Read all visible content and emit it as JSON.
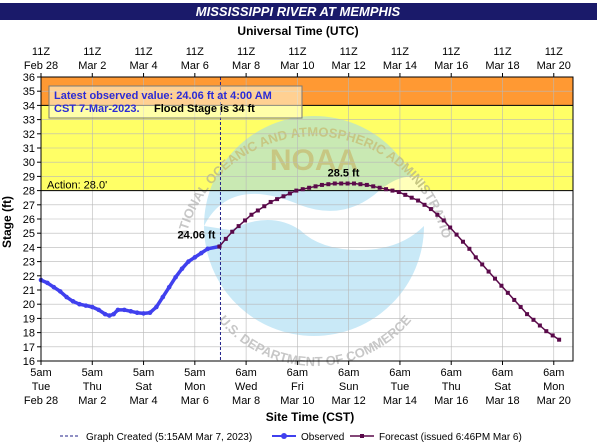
{
  "header": {
    "title": "MISSISSIPPI RIVER AT MEMPHIS",
    "utc_label": "Universal Time (UTC)"
  },
  "info_box": {
    "line1": "Latest observed value: 24.06 ft at 4:00 AM",
    "line2a": "CST 7-Mar-2023.",
    "line2b": "Flood Stage is 34 ft"
  },
  "watermark": {
    "logo_text": "NOAA",
    "ring_top": "NATIONAL OCEANIC AND ATMOSPHERIC ADMINISTRATION",
    "ring_bottom": "U.S. DEPARTMENT OF COMMERCE"
  },
  "legend": {
    "graph_created": "Graph Created (5:15AM Mar 7, 2023)",
    "observed": "Observed",
    "forecast": "Forecast (issued 6:46PM Mar 6)"
  },
  "colors": {
    "observed": "#4040ee",
    "forecast": "#5a0a4a",
    "action_zone": "#ffff66",
    "flood_zone": "#ff9933",
    "watermark_blue": "#9dd8f2"
  },
  "chart_data": {
    "type": "line",
    "title": "MISSISSIPPI RIVER AT MEMPHIS",
    "xlabel": "Site Time (CST)",
    "x2label": "Universal Time (UTC)",
    "ylabel": "Stage (ft)",
    "ylim": [
      16,
      36
    ],
    "yticks": [
      16,
      17,
      18,
      19,
      20,
      21,
      22,
      23,
      24,
      25,
      26,
      27,
      28,
      29,
      30,
      31,
      32,
      33,
      34,
      35,
      36
    ],
    "x_unit": "hours from Tue Feb 28 5am CST",
    "xlim": [
      0,
      498
    ],
    "grid": true,
    "bottom_ticks": [
      {
        "x": 0,
        "time": "5am",
        "day": "Tue",
        "date": "Feb 28"
      },
      {
        "x": 48,
        "time": "5am",
        "day": "Thu",
        "date": "Mar 2"
      },
      {
        "x": 96,
        "time": "5am",
        "day": "Sat",
        "date": "Mar 4"
      },
      {
        "x": 144,
        "time": "5am",
        "day": "Mon",
        "date": "Mar 6"
      },
      {
        "x": 192,
        "time": "6am",
        "day": "Wed",
        "date": "Mar 8"
      },
      {
        "x": 240,
        "time": "6am",
        "day": "Fri",
        "date": "Mar 10"
      },
      {
        "x": 288,
        "time": "6am",
        "day": "Sun",
        "date": "Mar 12"
      },
      {
        "x": 336,
        "time": "6am",
        "day": "Tue",
        "date": "Mar 14"
      },
      {
        "x": 384,
        "time": "6am",
        "day": "Thu",
        "date": "Mar 16"
      },
      {
        "x": 432,
        "time": "6am",
        "day": "Sat",
        "date": "Mar 18"
      },
      {
        "x": 480,
        "time": "6am",
        "day": "Mon",
        "date": "Mar 20"
      }
    ],
    "top_ticks": [
      {
        "x": 0,
        "time": "11Z",
        "date": "Feb 28"
      },
      {
        "x": 48,
        "time": "11Z",
        "date": "Mar 2"
      },
      {
        "x": 96,
        "time": "11Z",
        "date": "Mar 4"
      },
      {
        "x": 144,
        "time": "11Z",
        "date": "Mar 6"
      },
      {
        "x": 192,
        "time": "11Z",
        "date": "Mar 8"
      },
      {
        "x": 240,
        "time": "11Z",
        "date": "Mar 10"
      },
      {
        "x": 288,
        "time": "11Z",
        "date": "Mar 12"
      },
      {
        "x": 336,
        "time": "11Z",
        "date": "Mar 14"
      },
      {
        "x": 384,
        "time": "11Z",
        "date": "Mar 16"
      },
      {
        "x": 432,
        "time": "11Z",
        "date": "Mar 18"
      },
      {
        "x": 480,
        "time": "11Z",
        "date": "Mar 20"
      }
    ],
    "zones": [
      {
        "from": 28,
        "to": 34,
        "color": "#ffff66"
      },
      {
        "from": 34,
        "to": 36,
        "color": "#ff9933"
      }
    ],
    "thresholds": [
      {
        "value": 28,
        "label": "Action: 28.0'"
      },
      {
        "value": 34,
        "label": ""
      }
    ],
    "graph_created_x": 168,
    "observed": [
      {
        "x": 0,
        "y": 21.7
      },
      {
        "x": 6,
        "y": 21.5
      },
      {
        "x": 12,
        "y": 21.2
      },
      {
        "x": 18,
        "y": 20.9
      },
      {
        "x": 24,
        "y": 20.5
      },
      {
        "x": 30,
        "y": 20.2
      },
      {
        "x": 36,
        "y": 20.0
      },
      {
        "x": 42,
        "y": 19.9
      },
      {
        "x": 48,
        "y": 19.8
      },
      {
        "x": 54,
        "y": 19.6
      },
      {
        "x": 60,
        "y": 19.3
      },
      {
        "x": 64,
        "y": 19.2
      },
      {
        "x": 68,
        "y": 19.3
      },
      {
        "x": 72,
        "y": 19.6
      },
      {
        "x": 78,
        "y": 19.6
      },
      {
        "x": 84,
        "y": 19.5
      },
      {
        "x": 90,
        "y": 19.4
      },
      {
        "x": 96,
        "y": 19.35
      },
      {
        "x": 102,
        "y": 19.4
      },
      {
        "x": 108,
        "y": 19.8
      },
      {
        "x": 114,
        "y": 20.5
      },
      {
        "x": 120,
        "y": 21.2
      },
      {
        "x": 126,
        "y": 21.9
      },
      {
        "x": 132,
        "y": 22.5
      },
      {
        "x": 138,
        "y": 23.0
      },
      {
        "x": 144,
        "y": 23.3
      },
      {
        "x": 150,
        "y": 23.6
      },
      {
        "x": 156,
        "y": 23.9
      },
      {
        "x": 167,
        "y": 24.06
      }
    ],
    "forecast": [
      {
        "x": 167,
        "y": 24.06
      },
      {
        "x": 173,
        "y": 24.6
      },
      {
        "x": 179,
        "y": 25.1
      },
      {
        "x": 185,
        "y": 25.5
      },
      {
        "x": 191,
        "y": 25.9
      },
      {
        "x": 197,
        "y": 26.3
      },
      {
        "x": 203,
        "y": 26.6
      },
      {
        "x": 209,
        "y": 26.9
      },
      {
        "x": 215,
        "y": 27.2
      },
      {
        "x": 221,
        "y": 27.4
      },
      {
        "x": 227,
        "y": 27.6
      },
      {
        "x": 233,
        "y": 27.8
      },
      {
        "x": 239,
        "y": 28.0
      },
      {
        "x": 245,
        "y": 28.1
      },
      {
        "x": 251,
        "y": 28.2
      },
      {
        "x": 257,
        "y": 28.3
      },
      {
        "x": 263,
        "y": 28.4
      },
      {
        "x": 269,
        "y": 28.45
      },
      {
        "x": 275,
        "y": 28.5
      },
      {
        "x": 281,
        "y": 28.5
      },
      {
        "x": 287,
        "y": 28.5
      },
      {
        "x": 293,
        "y": 28.5
      },
      {
        "x": 299,
        "y": 28.45
      },
      {
        "x": 305,
        "y": 28.4
      },
      {
        "x": 311,
        "y": 28.3
      },
      {
        "x": 317,
        "y": 28.2
      },
      {
        "x": 323,
        "y": 28.1
      },
      {
        "x": 329,
        "y": 28.0
      },
      {
        "x": 335,
        "y": 27.9
      },
      {
        "x": 341,
        "y": 27.7
      },
      {
        "x": 347,
        "y": 27.5
      },
      {
        "x": 353,
        "y": 27.3
      },
      {
        "x": 359,
        "y": 27.0
      },
      {
        "x": 365,
        "y": 26.7
      },
      {
        "x": 371,
        "y": 26.3
      },
      {
        "x": 377,
        "y": 25.9
      },
      {
        "x": 383,
        "y": 25.4
      },
      {
        "x": 389,
        "y": 24.9
      },
      {
        "x": 395,
        "y": 24.4
      },
      {
        "x": 401,
        "y": 23.9
      },
      {
        "x": 407,
        "y": 23.3
      },
      {
        "x": 413,
        "y": 22.8
      },
      {
        "x": 419,
        "y": 22.3
      },
      {
        "x": 425,
        "y": 21.8
      },
      {
        "x": 431,
        "y": 21.3
      },
      {
        "x": 437,
        "y": 20.8
      },
      {
        "x": 443,
        "y": 20.3
      },
      {
        "x": 449,
        "y": 19.8
      },
      {
        "x": 455,
        "y": 19.3
      },
      {
        "x": 461,
        "y": 18.9
      },
      {
        "x": 467,
        "y": 18.5
      },
      {
        "x": 473,
        "y": 18.1
      },
      {
        "x": 479,
        "y": 17.8
      },
      {
        "x": 485,
        "y": 17.5
      }
    ],
    "annotations": [
      {
        "label": "24.06 ft",
        "x": 167,
        "y": 24.06,
        "series": "observed"
      },
      {
        "label": "28.5 ft",
        "x": 287,
        "y": 28.5,
        "series": "forecast"
      }
    ]
  }
}
